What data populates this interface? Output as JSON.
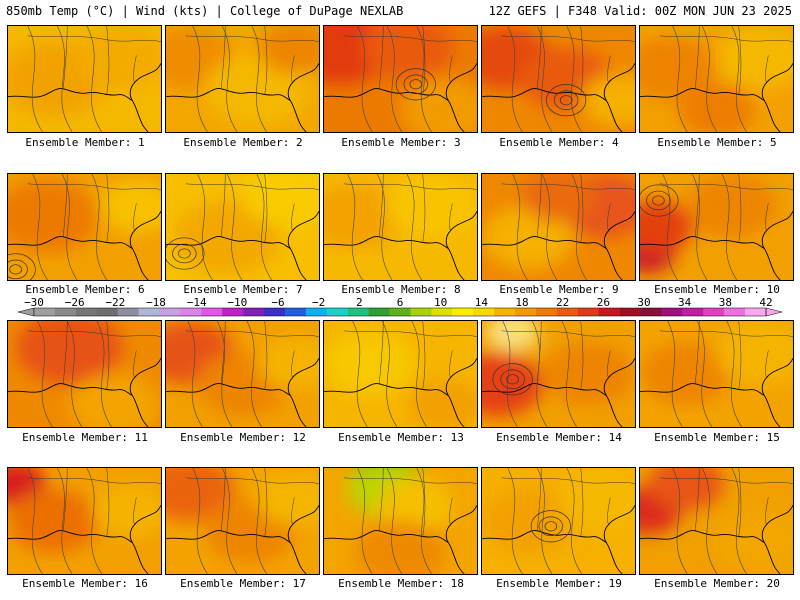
{
  "header": {
    "left": "850mb Temp (°C) | Wind (kts) | College of DuPage NEXLAB",
    "right": "12Z GEFS | F348 Valid: 00Z MON JUN 23 2025"
  },
  "caption_prefix": "Ensemble Member: ",
  "members": [
    {
      "label": "Ensemble Member: 1",
      "base": "#f5b800",
      "blobs": [
        [
          "#f2a200",
          0.3,
          0.5,
          0.35
        ],
        [
          "#f4ab00",
          0.75,
          0.3,
          0.3
        ]
      ],
      "lows": []
    },
    {
      "label": "Ensemble Member: 2",
      "base": "#f3a600",
      "blobs": [
        [
          "#ef8c00",
          0.15,
          0.3,
          0.3
        ],
        [
          "#f5b800",
          0.6,
          0.6,
          0.35
        ],
        [
          "#ee8500",
          0.85,
          0.2,
          0.25
        ]
      ],
      "lows": []
    },
    {
      "label": "Ensemble Member: 3",
      "base": "#ec7a00",
      "blobs": [
        [
          "#e23a10",
          0.1,
          0.2,
          0.35
        ],
        [
          "#ea5a10",
          0.55,
          0.2,
          0.3
        ],
        [
          "#f29b00",
          0.8,
          0.8,
          0.3
        ]
      ],
      "lows": [
        [
          0.6,
          0.55
        ]
      ]
    },
    {
      "label": "Ensemble Member: 4",
      "base": "#ef8800",
      "blobs": [
        [
          "#e44a10",
          0.15,
          0.3,
          0.3
        ],
        [
          "#e95a10",
          0.55,
          0.5,
          0.3
        ],
        [
          "#f5b000",
          0.9,
          0.7,
          0.25
        ]
      ],
      "lows": [
        [
          0.55,
          0.7
        ]
      ]
    },
    {
      "label": "Ensemble Member: 5",
      "base": "#f3a000",
      "blobs": [
        [
          "#ee8300",
          0.2,
          0.4,
          0.3
        ],
        [
          "#f5b800",
          0.8,
          0.3,
          0.3
        ],
        [
          "#ed7d00",
          0.5,
          0.8,
          0.25
        ]
      ],
      "lows": []
    },
    {
      "label": "Ensemble Member: 6",
      "base": "#f2a000",
      "blobs": [
        [
          "#ed7a00",
          0.25,
          0.4,
          0.35
        ],
        [
          "#f7c100",
          0.85,
          0.3,
          0.25
        ]
      ],
      "lows": [
        [
          0.05,
          0.9
        ]
      ]
    },
    {
      "label": "Ensemble Member: 7",
      "base": "#f7bf00",
      "blobs": [
        [
          "#f3a800",
          0.4,
          0.6,
          0.35
        ],
        [
          "#f9cb00",
          0.8,
          0.2,
          0.3
        ]
      ],
      "lows": [
        [
          0.12,
          0.75
        ]
      ]
    },
    {
      "label": "Ensemble Member: 8",
      "base": "#f6b800",
      "blobs": [
        [
          "#f3a200",
          0.2,
          0.4,
          0.3
        ],
        [
          "#f8c400",
          0.7,
          0.3,
          0.3
        ]
      ],
      "lows": []
    },
    {
      "label": "Ensemble Member: 9",
      "base": "#ef8800",
      "blobs": [
        [
          "#e7541a",
          0.8,
          0.3,
          0.3
        ],
        [
          "#f5b000",
          0.3,
          0.6,
          0.3
        ],
        [
          "#ea6a10",
          0.5,
          0.2,
          0.25
        ]
      ],
      "lows": []
    },
    {
      "label": "Ensemble Member: 10",
      "base": "#f2a000",
      "blobs": [
        [
          "#c8162a",
          0.05,
          0.75,
          0.18
        ],
        [
          "#e44010",
          0.1,
          0.5,
          0.25
        ],
        [
          "#ee8500",
          0.6,
          0.3,
          0.3
        ]
      ],
      "lows": [
        [
          0.12,
          0.25
        ]
      ]
    },
    {
      "label": "Ensemble Member: 11",
      "base": "#ef8a00",
      "blobs": [
        [
          "#e75218",
          0.4,
          0.25,
          0.35
        ],
        [
          "#f3a400",
          0.7,
          0.8,
          0.3
        ]
      ],
      "lows": []
    },
    {
      "label": "Ensemble Member: 12",
      "base": "#f2a000",
      "blobs": [
        [
          "#e75218",
          0.15,
          0.3,
          0.3
        ],
        [
          "#ee8400",
          0.5,
          0.6,
          0.3
        ],
        [
          "#f5b300",
          0.85,
          0.4,
          0.25
        ]
      ],
      "lows": []
    },
    {
      "label": "Ensemble Member: 13",
      "base": "#f6b500",
      "blobs": [
        [
          "#f8c800",
          0.3,
          0.4,
          0.3
        ],
        [
          "#f2a000",
          0.8,
          0.8,
          0.25
        ]
      ],
      "lows": []
    },
    {
      "label": "Ensemble Member: 14",
      "base": "#f1a000",
      "blobs": [
        [
          "#f9e080",
          0.2,
          0.1,
          0.18
        ],
        [
          "#e64018",
          0.1,
          0.6,
          0.3
        ],
        [
          "#ee8400",
          0.7,
          0.5,
          0.3
        ]
      ],
      "lows": [
        [
          0.2,
          0.55
        ]
      ]
    },
    {
      "label": "Ensemble Member: 15",
      "base": "#f3a300",
      "blobs": [
        [
          "#ee8500",
          0.3,
          0.5,
          0.3
        ],
        [
          "#f5b400",
          0.8,
          0.3,
          0.3
        ]
      ],
      "lows": []
    },
    {
      "label": "Ensemble Member: 16",
      "base": "#f2a000",
      "blobs": [
        [
          "#d81f1f",
          0.05,
          0.15,
          0.2
        ],
        [
          "#ec7000",
          0.3,
          0.5,
          0.3
        ],
        [
          "#f5b300",
          0.8,
          0.4,
          0.25
        ]
      ],
      "lows": []
    },
    {
      "label": "Ensemble Member: 17",
      "base": "#f3a300",
      "blobs": [
        [
          "#ea6410",
          0.15,
          0.2,
          0.3
        ],
        [
          "#ee8500",
          0.55,
          0.6,
          0.3
        ],
        [
          "#f5b500",
          0.85,
          0.3,
          0.25
        ]
      ],
      "lows": []
    },
    {
      "label": "Ensemble Member: 18",
      "base": "#f3a500",
      "blobs": [
        [
          "#6ab81c",
          0.4,
          0.05,
          0.2
        ],
        [
          "#bcd400",
          0.4,
          0.2,
          0.25
        ],
        [
          "#f5c000",
          0.6,
          0.35,
          0.25
        ],
        [
          "#ee8a00",
          0.5,
          0.8,
          0.3
        ]
      ],
      "lows": []
    },
    {
      "label": "Ensemble Member: 19",
      "base": "#f5b000",
      "blobs": [
        [
          "#f3a000",
          0.3,
          0.5,
          0.3
        ],
        [
          "#f6b800",
          0.8,
          0.3,
          0.3
        ]
      ],
      "lows": [
        [
          0.45,
          0.55
        ]
      ]
    },
    {
      "label": "Ensemble Member: 20",
      "base": "#f0a000",
      "blobs": [
        [
          "#dc2a1a",
          0.05,
          0.4,
          0.22
        ],
        [
          "#e85518",
          0.3,
          0.15,
          0.25
        ],
        [
          "#f3a600",
          0.8,
          0.7,
          0.3
        ]
      ],
      "lows": []
    }
  ],
  "scale": {
    "labels": [
      "-30",
      "-26",
      "-22",
      "-18",
      "-14",
      "-10",
      "-6",
      "-2",
      "2",
      "6",
      "10",
      "14",
      "18",
      "22",
      "26",
      "30",
      "34",
      "38",
      "42"
    ],
    "colors": [
      "#9e9e9e",
      "#8a8a8a",
      "#777777",
      "#6e6e6e",
      "#8d8da0",
      "#b0b6d8",
      "#c79fe0",
      "#d884e8",
      "#e255e8",
      "#c020c8",
      "#8020b8",
      "#3a2ec8",
      "#2060e0",
      "#10b0f0",
      "#20d0c8",
      "#20c080",
      "#30a030",
      "#60b020",
      "#a8d010",
      "#e0e000",
      "#f8f000",
      "#f8d800",
      "#f5b400",
      "#f29800",
      "#ee7a00",
      "#ea5a10",
      "#e23a18",
      "#c81820",
      "#a01020",
      "#8a1038",
      "#a01080",
      "#c020a0",
      "#e040c0",
      "#f070e0",
      "#f8a8f0"
    ]
  }
}
